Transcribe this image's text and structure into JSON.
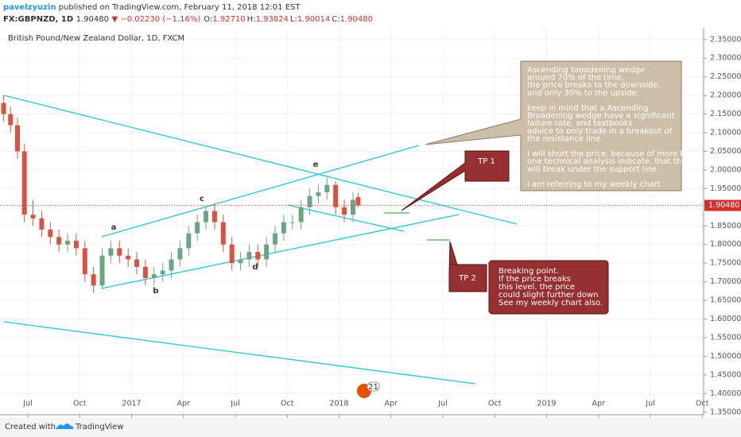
{
  "chart_data": {
    "type": "candlestick",
    "header": {
      "author": "pavelzyuzin",
      "published": "published on TradingView.com, February 11, 2018 12:01 EST",
      "symbol": "FX:GBPNZD, 1D",
      "price": "1.90480",
      "change": "▼ −0.02230 (−1.16%)",
      "ohlc": [
        {
          "label": "O:",
          "value": "1.92710"
        },
        {
          "label": "H:",
          "value": "1.93824"
        },
        {
          "label": "L:",
          "value": "1.90014"
        },
        {
          "label": "C:",
          "value": "1.90480"
        }
      ]
    },
    "title": "British Pound/New Zealand Dollar, 1D, FXCM",
    "up_color": "#6ba583",
    "down_color": "#d75442",
    "grid": true,
    "x": [
      4.6,
      5.0,
      5.4,
      5.8,
      6.3,
      6.8,
      7.3,
      7.8,
      8.3,
      8.8,
      9.3,
      9.8,
      10.3,
      10.8,
      11.3,
      11.8,
      12.3,
      12.8,
      13.3,
      13.8,
      14.3,
      14.8,
      15.3,
      15.8,
      16.3,
      16.8,
      17.3,
      17.8,
      18.3,
      18.8,
      19.3,
      19.8,
      20.3,
      20.8,
      21.3,
      21.8,
      22.3,
      22.8,
      23.3,
      23.8,
      24.3,
      24.8,
      25.1
    ],
    "open": [
      2.18,
      2.15,
      2.12,
      2.05,
      1.88,
      1.87,
      1.84,
      1.82,
      1.8,
      1.81,
      1.79,
      1.72,
      1.69,
      1.77,
      1.79,
      1.77,
      1.76,
      1.74,
      1.71,
      1.72,
      1.73,
      1.76,
      1.79,
      1.83,
      1.86,
      1.89,
      1.86,
      1.8,
      1.75,
      1.76,
      1.78,
      1.76,
      1.8,
      1.83,
      1.86,
      1.86,
      1.9,
      1.93,
      1.94,
      1.96,
      1.9,
      1.88,
      1.927
    ],
    "high": [
      2.2,
      2.17,
      2.14,
      2.07,
      1.92,
      1.89,
      1.86,
      1.84,
      1.83,
      1.83,
      1.81,
      1.74,
      1.79,
      1.81,
      1.81,
      1.79,
      1.78,
      1.76,
      1.74,
      1.75,
      1.78,
      1.81,
      1.85,
      1.88,
      1.9,
      1.91,
      1.88,
      1.82,
      1.78,
      1.8,
      1.8,
      1.82,
      1.85,
      1.88,
      1.88,
      1.92,
      1.95,
      1.96,
      1.98,
      1.97,
      1.92,
      1.94,
      1.938
    ],
    "low": [
      2.13,
      2.1,
      2.03,
      1.86,
      1.85,
      1.82,
      1.8,
      1.78,
      1.78,
      1.77,
      1.7,
      1.67,
      1.68,
      1.75,
      1.75,
      1.74,
      1.72,
      1.69,
      1.69,
      1.7,
      1.71,
      1.74,
      1.77,
      1.81,
      1.84,
      1.84,
      1.78,
      1.73,
      1.73,
      1.74,
      1.74,
      1.74,
      1.78,
      1.81,
      1.84,
      1.84,
      1.88,
      1.91,
      1.92,
      1.88,
      1.86,
      1.86,
      1.9
    ],
    "close": [
      2.15,
      2.12,
      2.05,
      1.88,
      1.87,
      1.84,
      1.82,
      1.8,
      1.81,
      1.79,
      1.72,
      1.69,
      1.77,
      1.79,
      1.77,
      1.76,
      1.74,
      1.71,
      1.72,
      1.73,
      1.76,
      1.79,
      1.83,
      1.86,
      1.89,
      1.86,
      1.8,
      1.75,
      1.76,
      1.78,
      1.76,
      1.8,
      1.83,
      1.86,
      1.86,
      1.9,
      1.93,
      1.94,
      1.96,
      1.9,
      1.88,
      1.92,
      1.905
    ],
    "xlim": [
      4.39,
      45.08
    ],
    "xticks": [
      {
        "value": 6,
        "label": "Jul"
      },
      {
        "value": 9,
        "label": "Oct"
      },
      {
        "value": 12,
        "label": "2017"
      },
      {
        "value": 15,
        "label": "Apr"
      },
      {
        "value": 18,
        "label": "Jul"
      },
      {
        "value": 21,
        "label": "Oct"
      },
      {
        "value": 24,
        "label": "2018"
      },
      {
        "value": 27,
        "label": "Apr"
      },
      {
        "value": 30,
        "label": "Jul"
      },
      {
        "value": 33,
        "label": "Oct"
      },
      {
        "value": 36,
        "label": "2019"
      },
      {
        "value": 39,
        "label": "Apr"
      },
      {
        "value": 42,
        "label": "Jul"
      },
      {
        "value": 45,
        "label": "Oct"
      }
    ],
    "ylim": [
      1.3431,
      2.3815
    ],
    "yticks": [
      {
        "value": 2.35,
        "label": "2.35000"
      },
      {
        "value": 2.3,
        "label": "2.30000"
      },
      {
        "value": 2.25,
        "label": "2.25000"
      },
      {
        "value": 2.2,
        "label": "2.20000"
      },
      {
        "value": 2.15,
        "label": "2.15000"
      },
      {
        "value": 2.1,
        "label": "2.10000"
      },
      {
        "value": 2.05,
        "label": "2.05000"
      },
      {
        "value": 2.0,
        "label": "2.00000"
      },
      {
        "value": 1.95,
        "label": "1.95000"
      },
      {
        "value": 1.85,
        "label": "1.85000"
      },
      {
        "value": 1.8,
        "label": "1.80000"
      },
      {
        "value": 1.75,
        "label": "1.75000"
      },
      {
        "value": 1.7,
        "label": "1.70000"
      },
      {
        "value": 1.65,
        "label": "1.65000"
      },
      {
        "value": 1.6,
        "label": "1.60000"
      },
      {
        "value": 1.55,
        "label": "1.55000"
      },
      {
        "value": 1.5,
        "label": "1.50000"
      },
      {
        "value": 1.45,
        "label": "1.45000"
      },
      {
        "value": 1.4,
        "label": "1.40000"
      },
      {
        "value": 1.35,
        "label": "1.35000"
      }
    ],
    "last_price": {
      "value": 1.9048,
      "label": "1.90480"
    },
    "wave_labels": [
      "a",
      "b",
      "c",
      "d",
      "e"
    ],
    "tp1": "TP 1",
    "tp2": "TP 2",
    "wedge_note": [
      "Ascending broadening wedge",
      "around 70% of the time,",
      "the price breaks to the downside.",
      "and only 30% to the upside.",
      "",
      "keep in mind that a Ascending",
      "Broadening wedge have a significant",
      "failure rate. and textbooks",
      "advice to only trade in a breakout of",
      "the resistance line.",
      "",
      "I will short the price. because of more than",
      "one technical analysis indicate, that the price",
      "will break under the support line.",
      "",
      "i am referring to my weekly chart"
    ],
    "breaking_note": [
      "Breaking point.",
      "If the price breaks",
      "this level. the price",
      "could slight further down",
      "See  my weekly chart also."
    ],
    "badge": "21",
    "footer": {
      "created": "Created with",
      "brand": "TradingView"
    }
  }
}
